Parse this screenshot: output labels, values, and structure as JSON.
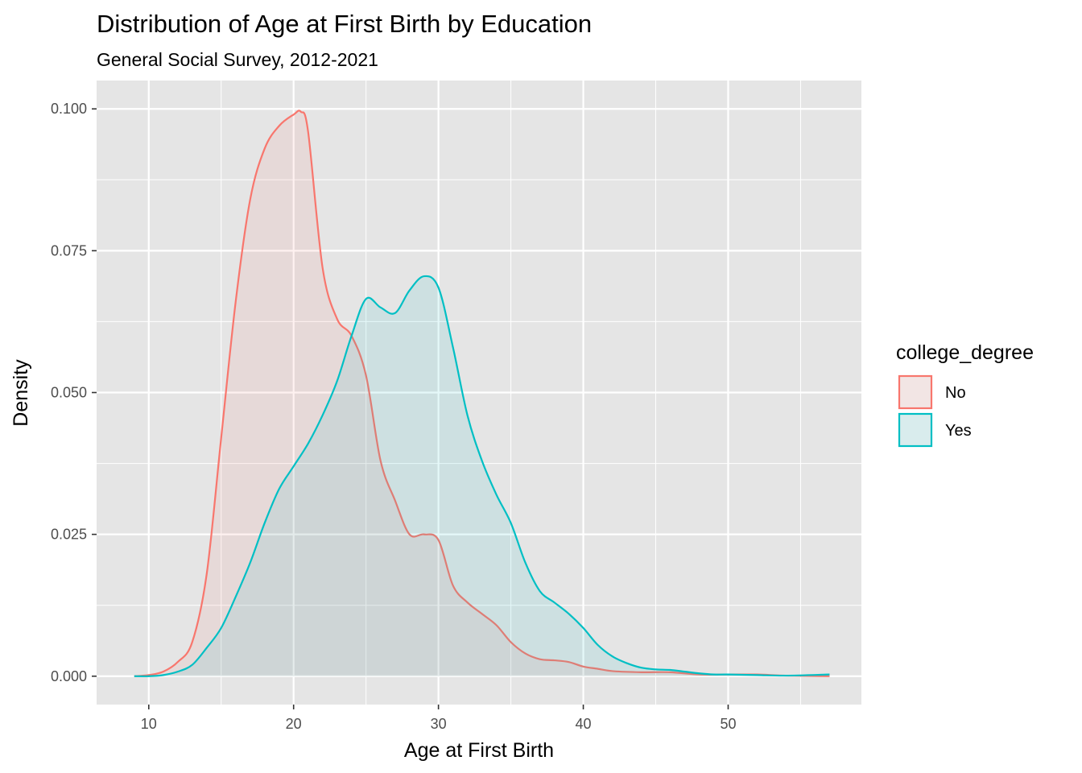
{
  "chart_data": {
    "type": "area",
    "title": "Distribution of Age at First Birth by Education",
    "subtitle": "General Social Survey, 2012-2021",
    "xlabel": "Age at First Birth",
    "ylabel": "Density",
    "xlim": [
      6.4,
      59.2
    ],
    "ylim": [
      -0.005,
      0.105
    ],
    "x_ticks": [
      10,
      20,
      30,
      40,
      50
    ],
    "x_tick_labels": [
      "10",
      "20",
      "30",
      "40",
      "50"
    ],
    "y_ticks": [
      0.0,
      0.025,
      0.05,
      0.075,
      0.1
    ],
    "y_tick_labels": [
      "0.000",
      "0.025",
      "0.050",
      "0.075",
      "0.100"
    ],
    "grid": true,
    "legend": {
      "title": "college_degree",
      "position": "right"
    },
    "colors": {
      "panel": "#e5e5e5",
      "grid": "#ffffff",
      "No": "#f8766d",
      "Yes": "#00bfc4"
    },
    "series": [
      {
        "name": "No",
        "x": [
          9,
          10,
          11,
          12,
          13,
          14,
          15,
          16,
          17,
          18,
          19,
          20,
          20.5,
          21,
          22,
          23,
          24,
          25,
          26,
          27,
          28,
          29,
          30,
          31,
          32,
          33,
          34,
          35,
          36,
          37,
          38,
          39,
          40,
          41,
          42,
          44,
          46,
          48,
          50,
          52,
          54,
          57
        ],
        "y": [
          0.0,
          0.0002,
          0.0008,
          0.0025,
          0.006,
          0.018,
          0.042,
          0.066,
          0.084,
          0.093,
          0.097,
          0.099,
          0.0995,
          0.096,
          0.072,
          0.063,
          0.06,
          0.053,
          0.038,
          0.031,
          0.025,
          0.025,
          0.024,
          0.016,
          0.013,
          0.011,
          0.009,
          0.006,
          0.004,
          0.003,
          0.0028,
          0.0025,
          0.0017,
          0.0013,
          0.0009,
          0.0007,
          0.0007,
          0.0003,
          0.0003,
          0.0003,
          0.0001,
          0.0
        ]
      },
      {
        "name": "Yes",
        "x": [
          9,
          10,
          11,
          12,
          13,
          14,
          15,
          16,
          17,
          18,
          19,
          20,
          21,
          22,
          23,
          24,
          25,
          26,
          27,
          28,
          29,
          30,
          31,
          32,
          33,
          34,
          35,
          36,
          37,
          38,
          39,
          40,
          41,
          42,
          43,
          44,
          45,
          46,
          47,
          48,
          49,
          50,
          52,
          54,
          57
        ],
        "y": [
          0.0,
          0.0,
          0.0002,
          0.0008,
          0.002,
          0.005,
          0.0085,
          0.014,
          0.02,
          0.027,
          0.033,
          0.037,
          0.041,
          0.046,
          0.052,
          0.06,
          0.0665,
          0.065,
          0.064,
          0.068,
          0.0705,
          0.0685,
          0.058,
          0.046,
          0.038,
          0.032,
          0.027,
          0.02,
          0.015,
          0.013,
          0.011,
          0.0085,
          0.0055,
          0.0035,
          0.0023,
          0.0015,
          0.0012,
          0.0011,
          0.0008,
          0.0005,
          0.0003,
          0.0003,
          0.0002,
          0.0001,
          0.0003
        ]
      }
    ]
  }
}
